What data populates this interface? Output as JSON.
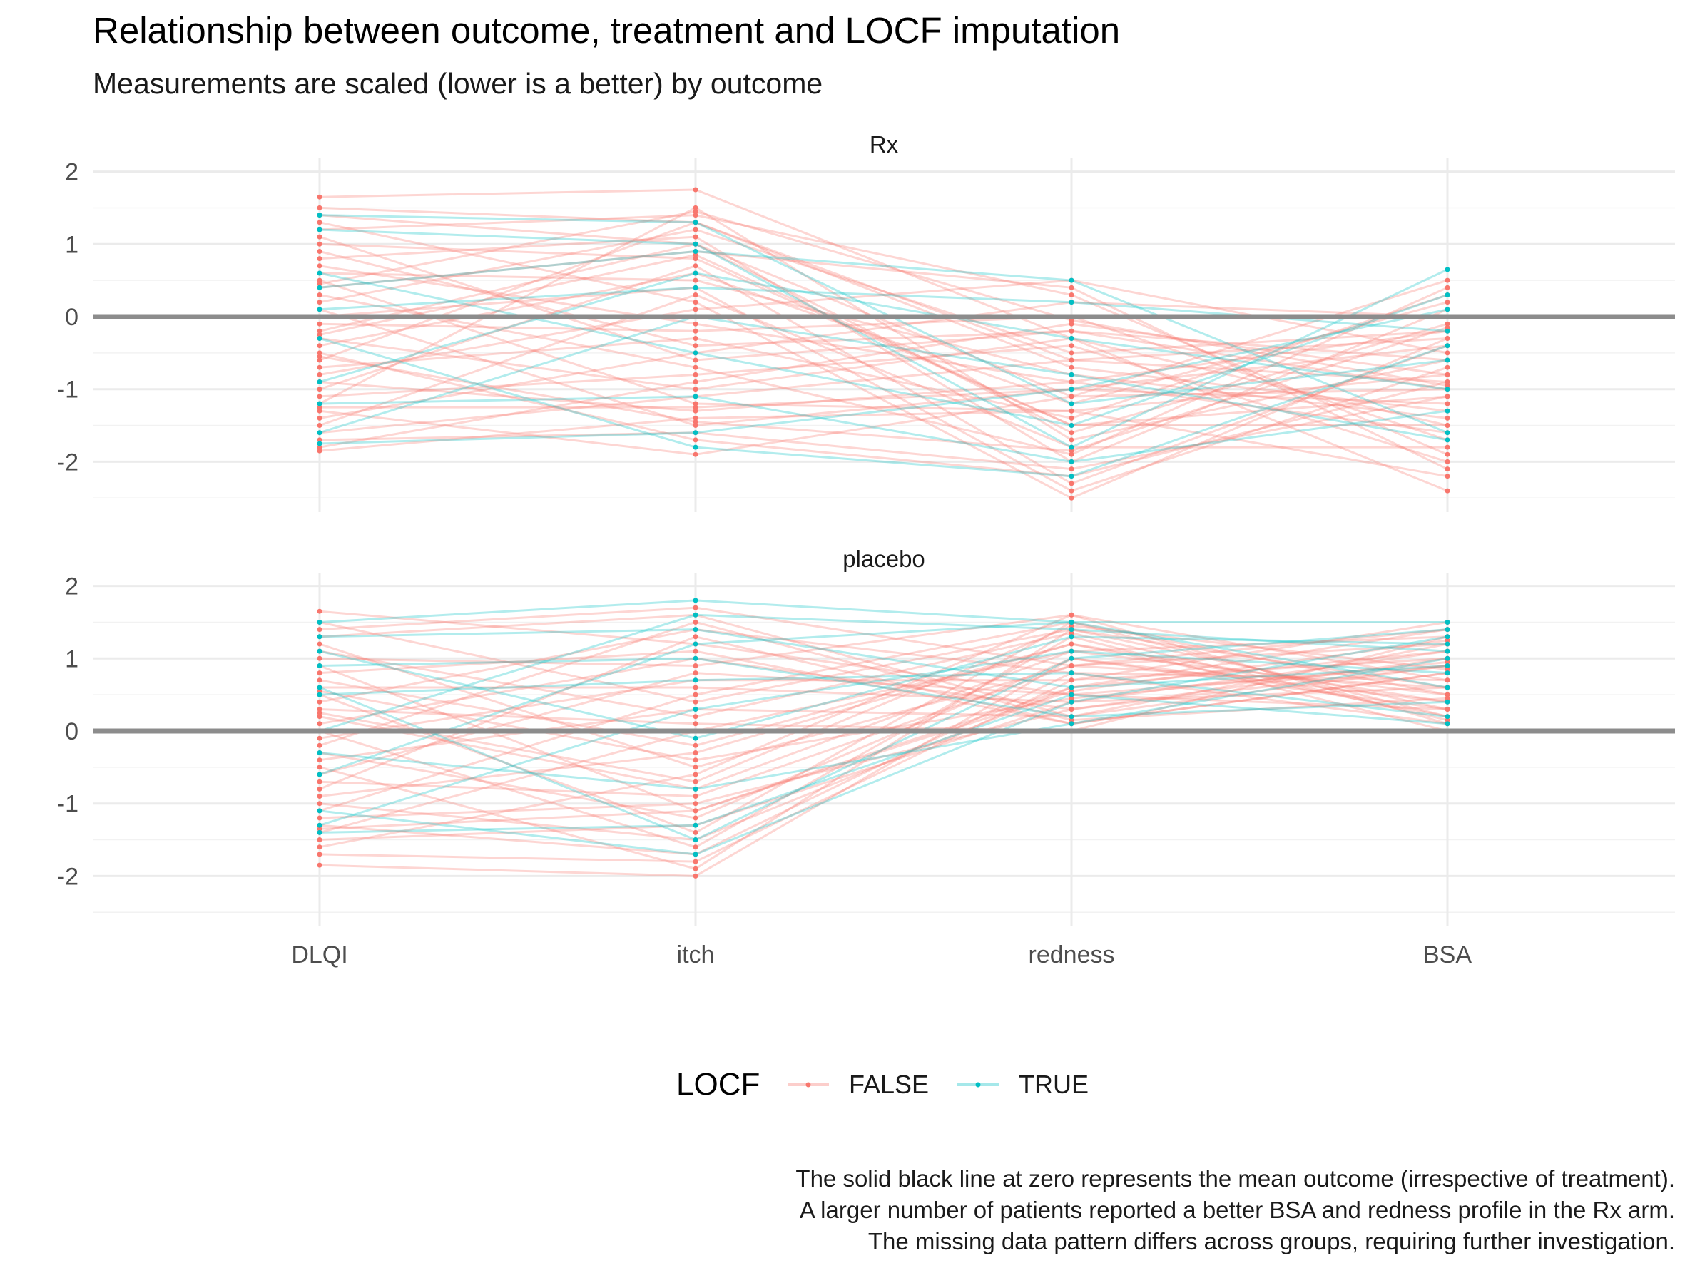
{
  "chart_data": {
    "type": "line",
    "title": "Relationship between outcome, treatment and LOCF imputation",
    "subtitle": "Measurements are scaled (lower is a better) by outcome",
    "categories": [
      "DLQI",
      "itch",
      "redness",
      "BSA"
    ],
    "ylim": [
      -2.5,
      2.4
    ],
    "yticks": [
      2,
      1,
      0,
      -1,
      -2
    ],
    "ytick_labels": [
      "2",
      "1",
      "0",
      "-1",
      "-2"
    ],
    "reference_line": 0,
    "grid": true,
    "legend": {
      "title": "LOCF",
      "position": "bottom",
      "entries": [
        {
          "label": "FALSE",
          "color": "#F8766D"
        },
        {
          "label": "TRUE",
          "color": "#00BFC4"
        }
      ]
    },
    "caption": [
      "The solid black line at zero represents the mean outcome (irrespective of treatment).",
      "A larger number of patients reported a better BSA and redness profile in the Rx arm.",
      "The missing data pattern differs across groups, requiring further investigation."
    ],
    "panels": [
      {
        "label": "Rx",
        "series": [
          {
            "locf": false,
            "values": [
              1.65,
              1.75,
              -0.3,
              -1.5
            ]
          },
          {
            "locf": false,
            "values": [
              1.5,
              1.3,
              -0.6,
              -0.9
            ]
          },
          {
            "locf": false,
            "values": [
              1.4,
              1.0,
              -1.1,
              0.5
            ]
          },
          {
            "locf": false,
            "values": [
              1.3,
              0.2,
              -2.5,
              -0.3
            ]
          },
          {
            "locf": false,
            "values": [
              1.2,
              1.4,
              0.3,
              -1.9
            ]
          },
          {
            "locf": false,
            "values": [
              1.0,
              0.8,
              -1.5,
              -1.1
            ]
          },
          {
            "locf": false,
            "values": [
              0.9,
              -0.4,
              -0.2,
              -0.6
            ]
          },
          {
            "locf": false,
            "values": [
              0.8,
              1.1,
              -2.0,
              0.1
            ]
          },
          {
            "locf": false,
            "values": [
              0.6,
              0.5,
              -0.8,
              -1.4
            ]
          },
          {
            "locf": false,
            "values": [
              0.5,
              -1.2,
              -1.3,
              -0.8
            ]
          },
          {
            "locf": false,
            "values": [
              0.4,
              0.9,
              0.4,
              -2.1
            ]
          },
          {
            "locf": false,
            "values": [
              0.3,
              -0.7,
              -1.9,
              0.4
            ]
          },
          {
            "locf": false,
            "values": [
              0.2,
              1.2,
              -0.5,
              -0.2
            ]
          },
          {
            "locf": false,
            "values": [
              0.1,
              -1.5,
              -1.0,
              -1.2
            ]
          },
          {
            "locf": false,
            "values": [
              0.0,
              0.4,
              -2.4,
              -0.7
            ]
          },
          {
            "locf": false,
            "values": [
              -0.1,
              -0.2,
              0.0,
              -1.7
            ]
          },
          {
            "locf": false,
            "values": [
              -0.2,
              1.0,
              -1.6,
              -0.1
            ]
          },
          {
            "locf": false,
            "values": [
              -0.3,
              -1.0,
              -0.3,
              -2.4
            ]
          },
          {
            "locf": false,
            "values": [
              -0.4,
              0.6,
              -1.2,
              0.2
            ]
          },
          {
            "locf": false,
            "values": [
              -0.5,
              -1.7,
              -2.2,
              -0.9
            ]
          },
          {
            "locf": false,
            "values": [
              -0.6,
              1.3,
              -0.7,
              -1.3
            ]
          },
          {
            "locf": false,
            "values": [
              -0.7,
              -0.3,
              -1.4,
              0.3
            ]
          },
          {
            "locf": false,
            "values": [
              -0.8,
              0.1,
              0.5,
              -0.5
            ]
          },
          {
            "locf": false,
            "values": [
              -0.9,
              -1.3,
              -0.9,
              -1.6
            ]
          },
          {
            "locf": false,
            "values": [
              -1.0,
              0.7,
              -2.3,
              -0.4
            ]
          },
          {
            "locf": false,
            "values": [
              -1.1,
              -0.8,
              -0.4,
              -2.0
            ]
          },
          {
            "locf": false,
            "values": [
              -1.2,
              1.5,
              -1.7,
              -0.6
            ]
          },
          {
            "locf": false,
            "values": [
              -1.3,
              -1.9,
              -1.1,
              -1.0
            ]
          },
          {
            "locf": false,
            "values": [
              -1.4,
              -0.5,
              0.2,
              0.0
            ]
          },
          {
            "locf": false,
            "values": [
              -1.5,
              0.3,
              -1.8,
              -1.8
            ]
          },
          {
            "locf": false,
            "values": [
              -1.6,
              -1.1,
              -0.6,
              -0.3
            ]
          },
          {
            "locf": false,
            "values": [
              -1.7,
              -1.6,
              -2.1,
              -1.1
            ]
          },
          {
            "locf": false,
            "values": [
              -1.8,
              -0.9,
              -0.1,
              -0.8
            ]
          },
          {
            "locf": false,
            "values": [
              -1.85,
              -1.4,
              -1.3,
              -2.2
            ]
          },
          {
            "locf": false,
            "values": [
              0.7,
              -0.1,
              -0.9,
              -0.2
            ]
          },
          {
            "locf": false,
            "values": [
              -0.25,
              0.85,
              -1.5,
              -1.5
            ]
          },
          {
            "locf": false,
            "values": [
              1.1,
              -0.6,
              -0.2,
              -1.0
            ]
          },
          {
            "locf": false,
            "values": [
              -1.25,
              -1.25,
              -1.0,
              -0.4
            ]
          },
          {
            "locf": false,
            "values": [
              0.45,
              1.45,
              -0.05,
              -0.95
            ]
          },
          {
            "locf": false,
            "values": [
              -0.55,
              -1.45,
              -1.85,
              -0.15
            ]
          },
          {
            "locf": true,
            "values": [
              1.2,
              1.0,
              -1.8,
              0.65
            ]
          },
          {
            "locf": true,
            "values": [
              0.4,
              0.9,
              0.5,
              -1.6
            ]
          },
          {
            "locf": true,
            "values": [
              -0.3,
              -1.8,
              -2.2,
              -0.4
            ]
          },
          {
            "locf": true,
            "values": [
              -1.6,
              0.0,
              -0.8,
              -1.7
            ]
          },
          {
            "locf": true,
            "values": [
              0.6,
              -0.5,
              -1.5,
              0.3
            ]
          },
          {
            "locf": true,
            "values": [
              -0.9,
              0.6,
              -0.3,
              -1.0
            ]
          },
          {
            "locf": true,
            "values": [
              1.4,
              1.3,
              -1.2,
              -0.6
            ]
          },
          {
            "locf": true,
            "values": [
              -1.2,
              -1.1,
              -2.0,
              -1.3
            ]
          },
          {
            "locf": true,
            "values": [
              0.1,
              0.4,
              0.2,
              -0.2
            ]
          },
          {
            "locf": true,
            "values": [
              -1.75,
              -1.6,
              -1.0,
              0.1
            ]
          }
        ]
      },
      {
        "label": "placebo",
        "series": [
          {
            "locf": false,
            "values": [
              1.65,
              1.2,
              0.5,
              0.9
            ]
          },
          {
            "locf": false,
            "values": [
              1.5,
              0.4,
              1.4,
              0.3
            ]
          },
          {
            "locf": false,
            "values": [
              1.3,
              1.6,
              0.2,
              1.2
            ]
          },
          {
            "locf": false,
            "values": [
              1.2,
              -0.5,
              0.9,
              0.6
            ]
          },
          {
            "locf": false,
            "values": [
              1.0,
              0.9,
              1.6,
              0.1
            ]
          },
          {
            "locf": false,
            "values": [
              0.9,
              -1.1,
              0.6,
              1.4
            ]
          },
          {
            "locf": false,
            "values": [
              0.8,
              1.1,
              0.1,
              0.8
            ]
          },
          {
            "locf": false,
            "values": [
              0.7,
              -0.2,
              1.2,
              0.4
            ]
          },
          {
            "locf": false,
            "values": [
              0.6,
              0.6,
              0.4,
              1.1
            ]
          },
          {
            "locf": false,
            "values": [
              0.5,
              -1.4,
              1.5,
              0.2
            ]
          },
          {
            "locf": false,
            "values": [
              0.4,
              1.4,
              0.8,
              0.7
            ]
          },
          {
            "locf": false,
            "values": [
              0.3,
              0.1,
              0.0,
              1.3
            ]
          },
          {
            "locf": false,
            "values": [
              0.2,
              -0.8,
              1.1,
              0.5
            ]
          },
          {
            "locf": false,
            "values": [
              0.1,
              1.0,
              0.3,
              1.0
            ]
          },
          {
            "locf": false,
            "values": [
              0.0,
              -1.6,
              1.3,
              0.0
            ]
          },
          {
            "locf": false,
            "values": [
              -0.1,
              0.7,
              0.7,
              1.5
            ]
          },
          {
            "locf": false,
            "values": [
              -0.3,
              -1.2,
              1.0,
              0.4
            ]
          },
          {
            "locf": false,
            "values": [
              -0.4,
              0.3,
              0.2,
              0.9
            ]
          },
          {
            "locf": false,
            "values": [
              -0.5,
              -1.9,
              1.4,
              0.6
            ]
          },
          {
            "locf": false,
            "values": [
              -0.6,
              0.8,
              0.5,
              0.3
            ]
          },
          {
            "locf": false,
            "values": [
              -0.7,
              -0.9,
              0.9,
              1.2
            ]
          },
          {
            "locf": false,
            "values": [
              -0.8,
              1.3,
              0.1,
              0.8
            ]
          },
          {
            "locf": false,
            "values": [
              -0.9,
              -0.3,
              1.2,
              0.2
            ]
          },
          {
            "locf": false,
            "values": [
              -1.0,
              -1.5,
              0.6,
              1.1
            ]
          },
          {
            "locf": false,
            "values": [
              -1.1,
              0.5,
              1.5,
              0.5
            ]
          },
          {
            "locf": false,
            "values": [
              -1.2,
              -1.0,
              0.3,
              0.9
            ]
          },
          {
            "locf": false,
            "values": [
              -1.3,
              -1.7,
              0.8,
              0.1
            ]
          },
          {
            "locf": false,
            "values": [
              -1.4,
              0.0,
              1.1,
              1.3
            ]
          },
          {
            "locf": false,
            "values": [
              -1.5,
              -1.3,
              0.4,
              0.6
            ]
          },
          {
            "locf": false,
            "values": [
              -1.6,
              -0.6,
              1.6,
              0.7
            ]
          },
          {
            "locf": false,
            "values": [
              -1.7,
              -1.8,
              0.7,
              1.0
            ]
          },
          {
            "locf": false,
            "values": [
              -1.85,
              -2.0,
              1.0,
              0.3
            ]
          },
          {
            "locf": false,
            "values": [
              1.4,
              1.7,
              0.9,
              1.4
            ]
          },
          {
            "locf": false,
            "values": [
              0.55,
              -0.4,
              0.45,
              0.95
            ]
          },
          {
            "locf": false,
            "values": [
              -0.2,
              1.5,
              0.15,
              0.45
            ]
          },
          {
            "locf": false,
            "values": [
              1.1,
              0.2,
              1.35,
              0.15
            ]
          },
          {
            "locf": false,
            "values": [
              -1.35,
              -1.1,
              0.55,
              1.25
            ]
          },
          {
            "locf": false,
            "values": [
              0.25,
              -0.7,
              1.45,
              0.85
            ]
          },
          {
            "locf": true,
            "values": [
              1.5,
              1.8,
              1.5,
              1.5
            ]
          },
          {
            "locf": true,
            "values": [
              1.3,
              1.4,
              0.6,
              0.9
            ]
          },
          {
            "locf": true,
            "values": [
              1.1,
              -0.1,
              1.3,
              1.2
            ]
          },
          {
            "locf": true,
            "values": [
              0.9,
              1.0,
              0.2,
              0.4
            ]
          },
          {
            "locf": true,
            "values": [
              0.6,
              -1.5,
              1.0,
              1.4
            ]
          },
          {
            "locf": true,
            "values": [
              0.5,
              0.7,
              0.8,
              0.2
            ]
          },
          {
            "locf": true,
            "values": [
              -0.3,
              -0.8,
              0.1,
              1.0
            ]
          },
          {
            "locf": true,
            "values": [
              -0.6,
              1.2,
              1.5,
              0.6
            ]
          },
          {
            "locf": true,
            "values": [
              -1.1,
              -1.7,
              0.4,
              1.3
            ]
          },
          {
            "locf": true,
            "values": [
              -1.3,
              0.3,
              1.1,
              0.8
            ]
          },
          {
            "locf": true,
            "values": [
              -1.4,
              -1.3,
              0.5,
              0.1
            ]
          },
          {
            "locf": true,
            "values": [
              0.0,
              1.6,
              1.4,
              1.1
            ]
          }
        ]
      }
    ]
  }
}
